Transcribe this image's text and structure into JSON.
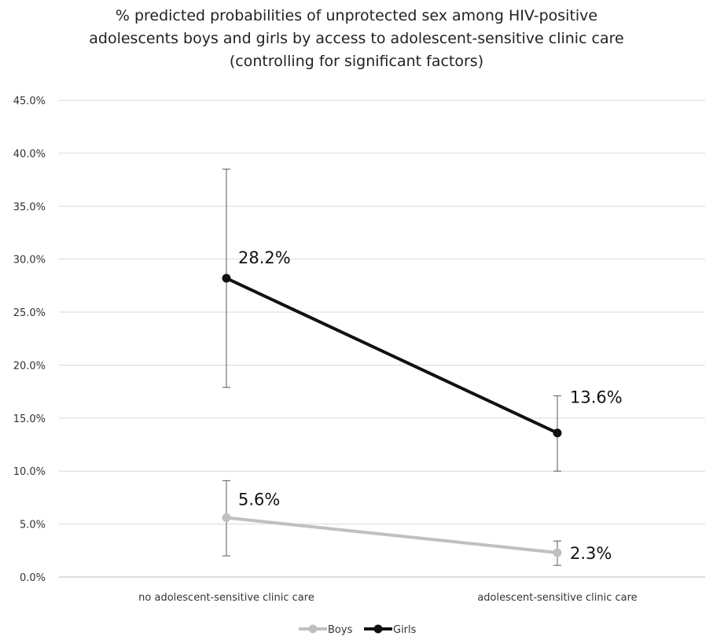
{
  "chart_data": {
    "type": "line",
    "title_lines": [
      "% predicted probabilities of unprotected sex among HIV-positive",
      "adolescents boys and girls by access to adolescent-sensitive clinic care",
      "(controlling for significant factors)"
    ],
    "categories": [
      "no adolescent-sensitive clinic care",
      "adolescent-sensitive clinic care"
    ],
    "yticks": [
      "0.0%",
      "5.0%",
      "10.0%",
      "15.0%",
      "20.0%",
      "25.0%",
      "30.0%",
      "35.0%",
      "40.0%",
      "45.0%"
    ],
    "ylim": [
      0,
      45
    ],
    "grid": true,
    "legend_position": "bottom",
    "series": [
      {
        "name": "Boys",
        "color": "#c0c0c0",
        "values": [
          5.6,
          2.3
        ],
        "labels": [
          "5.6%",
          "2.3%"
        ],
        "error_low": [
          2.0,
          1.1
        ],
        "error_high": [
          9.1,
          3.4
        ]
      },
      {
        "name": "Girls",
        "color": "#111111",
        "values": [
          28.2,
          13.6
        ],
        "labels": [
          "28.2%",
          "13.6%"
        ],
        "error_low": [
          17.9,
          10.0
        ],
        "error_high": [
          38.5,
          17.1
        ]
      }
    ]
  }
}
